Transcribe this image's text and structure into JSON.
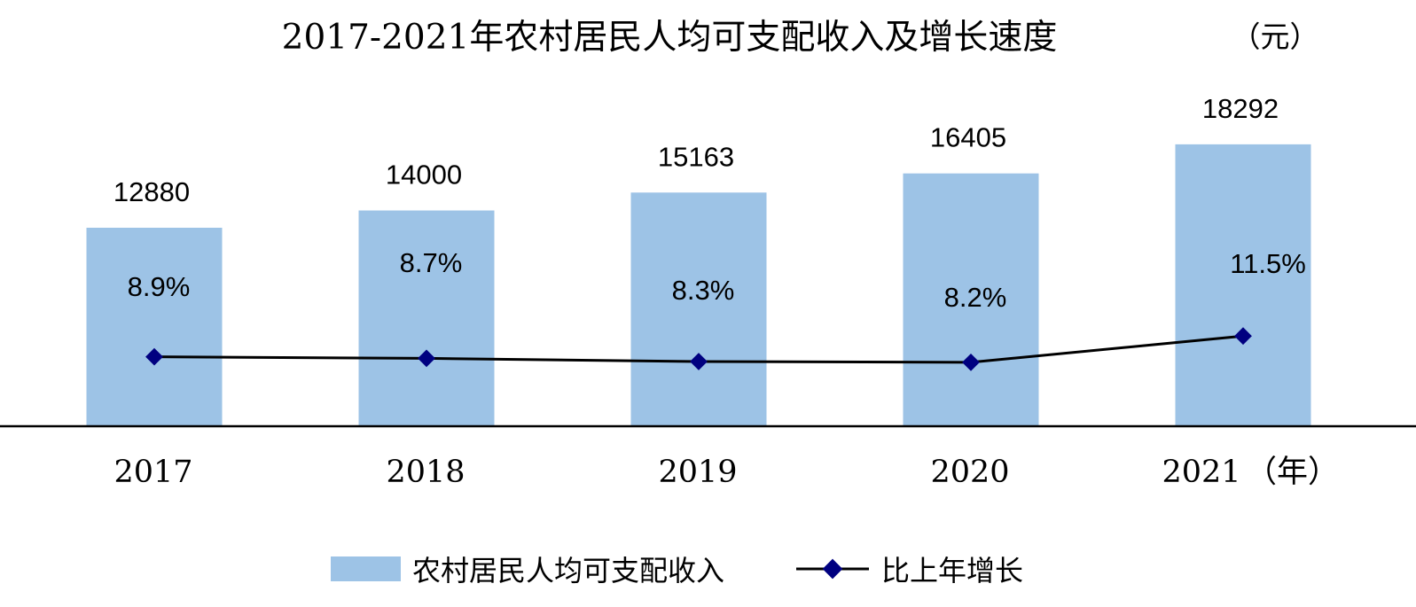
{
  "chart_data": {
    "type": "bar",
    "title": "2017-2021年农村居民人均可支配收入及增长速度",
    "y_unit": "（元）",
    "x_unit": "（年）",
    "categories": [
      "2017",
      "2018",
      "2019",
      "2020",
      "2021"
    ],
    "series": [
      {
        "name": "农村居民人均可支配收入",
        "type": "bar",
        "values": [
          12880,
          14000,
          15163,
          16405,
          18292
        ],
        "labels": [
          "12880",
          "14000",
          "15163",
          "16405",
          "18292"
        ],
        "color": "#9DC3E6"
      },
      {
        "name": "比上年增长",
        "type": "line",
        "values": [
          8.9,
          8.7,
          8.3,
          8.2,
          11.5
        ],
        "labels": [
          "8.9%",
          "8.7%",
          "8.3%",
          "8.2%",
          "11.5%"
        ],
        "color": "#000000",
        "marker_color": "#000080"
      }
    ],
    "grid": false,
    "legend": "bottom-center"
  }
}
